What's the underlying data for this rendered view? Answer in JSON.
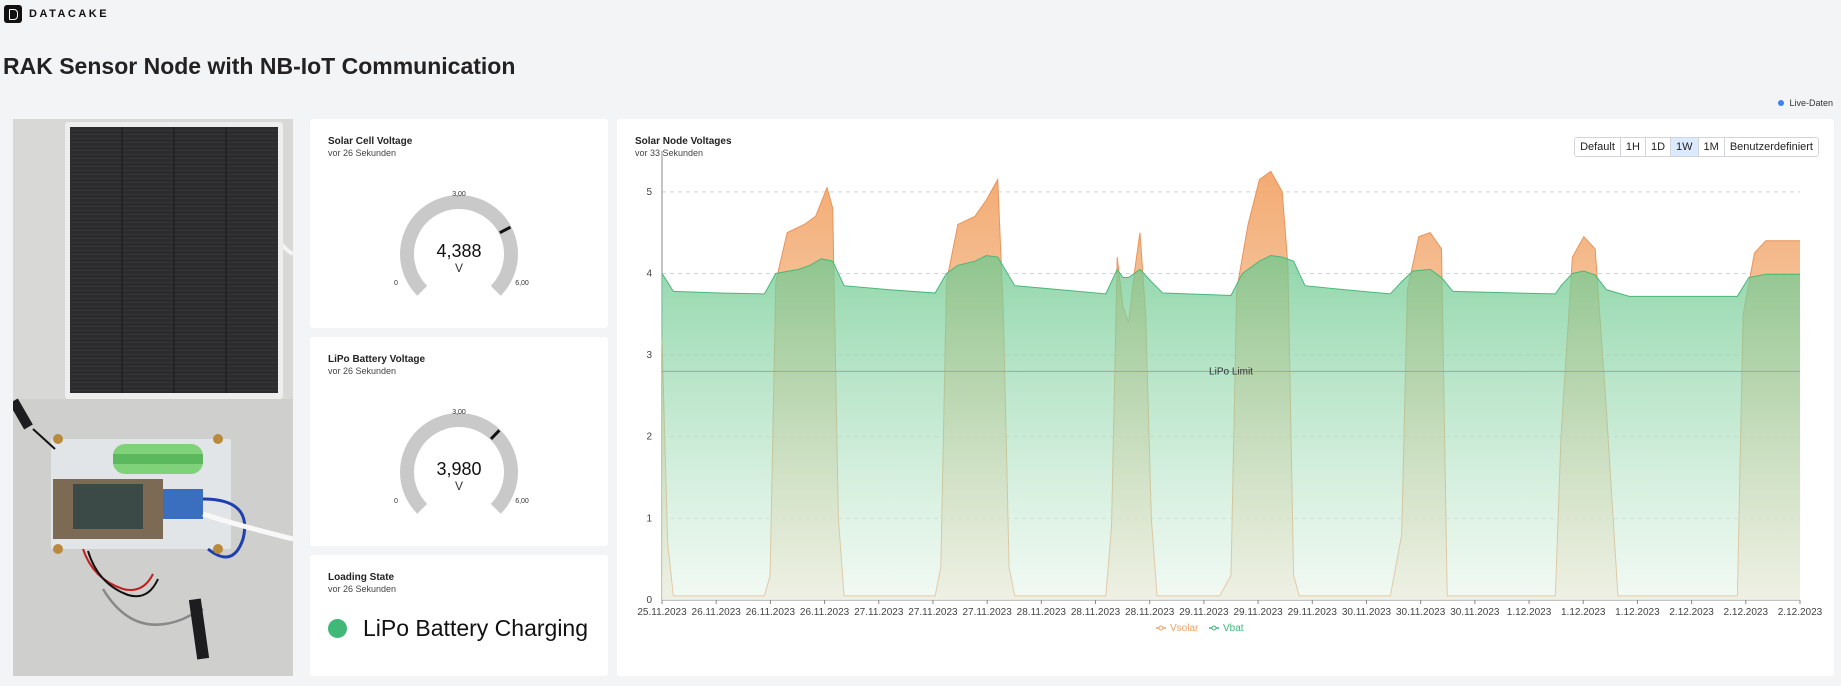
{
  "brand": {
    "name": "DATACAKE"
  },
  "page": {
    "title": "RAK Sensor Node with NB-IoT Communication"
  },
  "live": {
    "label": "Live-Daten",
    "color": "#3b82f6"
  },
  "widgets": {
    "solar_cell": {
      "title": "Solar Cell Voltage",
      "updated": "vor 26 Sekunden",
      "value": "4,388",
      "value_num": 4.388,
      "unit": "V",
      "min": "0",
      "mid": "3,00",
      "max": "6,00",
      "min_num": 0,
      "max_num": 6
    },
    "lipo_battery": {
      "title": "LiPo Battery Voltage",
      "updated": "vor 26 Sekunden",
      "value": "3,980",
      "value_num": 3.98,
      "unit": "V",
      "min": "0",
      "mid": "3,00",
      "max": "6,00",
      "min_num": 0,
      "max_num": 6
    },
    "loading_state": {
      "title": "Loading State",
      "updated": "vor 26 Sekunden",
      "status": "LiPo Battery Charging",
      "status_color": "#3fb878"
    }
  },
  "chart_card": {
    "title": "Solar Node Voltages",
    "updated": "vor 33 Sekunden",
    "ranges": [
      "Default",
      "1H",
      "1D",
      "1W",
      "1M",
      "Benutzerdefiniert"
    ],
    "active_range": "1W"
  },
  "chart_data": {
    "type": "area",
    "title": "Solar Node Voltages",
    "x": [
      "25.11.2023",
      "26.11.2023",
      "26.11.2023",
      "26.11.2023",
      "27.11.2023",
      "27.11.2023",
      "27.11.2023",
      "28.11.2023",
      "28.11.2023",
      "28.11.2023",
      "29.11.2023",
      "29.11.2023",
      "29.11.2023",
      "30.11.2023",
      "30.11.2023",
      "30.11.2023",
      "1.12.2023",
      "1.12.2023",
      "1.12.2023",
      "2.12.2023",
      "2.12.2023",
      "2.12.2023"
    ],
    "yticks": [
      "0",
      "1",
      "2",
      "3",
      "4",
      "5"
    ],
    "ylim": [
      0,
      5.5
    ],
    "reference_line": {
      "label": "LiPo Limit",
      "value": 2.8
    },
    "legend_position": "bottom-center",
    "grid": true,
    "series": [
      {
        "name": "Vsolar",
        "color": "#f0a268",
        "values": [
          [
            0,
            3.2
          ],
          [
            0.05,
            0.7
          ],
          [
            0.1,
            0.05
          ],
          [
            0.5,
            0.05
          ],
          [
            0.9,
            0.05
          ],
          [
            0.95,
            0.3
          ],
          [
            1.0,
            3.9
          ],
          [
            1.1,
            4.5
          ],
          [
            1.25,
            4.6
          ],
          [
            1.35,
            4.7
          ],
          [
            1.45,
            5.05
          ],
          [
            1.5,
            4.8
          ],
          [
            1.55,
            1.0
          ],
          [
            1.6,
            0.05
          ],
          [
            2.0,
            0.05
          ],
          [
            2.4,
            0.05
          ],
          [
            2.45,
            0.4
          ],
          [
            2.5,
            3.9
          ],
          [
            2.6,
            4.6
          ],
          [
            2.75,
            4.7
          ],
          [
            2.85,
            4.9
          ],
          [
            2.95,
            5.15
          ],
          [
            3.0,
            3.5
          ],
          [
            3.05,
            0.4
          ],
          [
            3.1,
            0.05
          ],
          [
            3.5,
            0.05
          ],
          [
            3.9,
            0.05
          ],
          [
            3.95,
            0.9
          ],
          [
            4.0,
            4.2
          ],
          [
            4.05,
            3.6
          ],
          [
            4.1,
            3.4
          ],
          [
            4.15,
            4.0
          ],
          [
            4.2,
            4.5
          ],
          [
            4.25,
            3.5
          ],
          [
            4.3,
            1.0
          ],
          [
            4.35,
            0.05
          ],
          [
            4.8,
            0.05
          ],
          [
            4.9,
            0.05
          ],
          [
            5.0,
            0.3
          ],
          [
            5.05,
            3.8
          ],
          [
            5.15,
            4.6
          ],
          [
            5.25,
            5.15
          ],
          [
            5.35,
            5.25
          ],
          [
            5.45,
            5.0
          ],
          [
            5.5,
            4.1
          ],
          [
            5.55,
            0.3
          ],
          [
            5.6,
            0.05
          ],
          [
            6.0,
            0.05
          ],
          [
            6.4,
            0.05
          ],
          [
            6.5,
            0.8
          ],
          [
            6.55,
            3.8
          ],
          [
            6.65,
            4.45
          ],
          [
            6.75,
            4.5
          ],
          [
            6.85,
            4.3
          ],
          [
            6.9,
            0.05
          ],
          [
            7.0,
            0.05
          ],
          [
            7.5,
            0.05
          ],
          [
            7.85,
            0.05
          ],
          [
            7.9,
            2.0
          ],
          [
            8.0,
            4.2
          ],
          [
            8.1,
            4.45
          ],
          [
            8.2,
            4.3
          ],
          [
            8.3,
            2.3
          ],
          [
            8.4,
            0.05
          ],
          [
            8.8,
            0.05
          ],
          [
            9.45,
            0.05
          ],
          [
            9.5,
            3.5
          ],
          [
            9.6,
            4.25
          ],
          [
            9.7,
            4.4
          ],
          [
            9.8,
            4.4
          ],
          [
            10.0,
            4.4
          ]
        ]
      },
      {
        "name": "Vbat",
        "color": "#3fb878",
        "values": [
          [
            0,
            4.0
          ],
          [
            0.1,
            3.78
          ],
          [
            0.5,
            3.76
          ],
          [
            0.9,
            3.75
          ],
          [
            1.0,
            4.0
          ],
          [
            1.2,
            4.05
          ],
          [
            1.3,
            4.1
          ],
          [
            1.4,
            4.18
          ],
          [
            1.5,
            4.15
          ],
          [
            1.6,
            3.85
          ],
          [
            2.0,
            3.8
          ],
          [
            2.4,
            3.76
          ],
          [
            2.5,
            4.0
          ],
          [
            2.6,
            4.1
          ],
          [
            2.75,
            4.15
          ],
          [
            2.85,
            4.22
          ],
          [
            2.95,
            4.2
          ],
          [
            3.1,
            3.85
          ],
          [
            3.5,
            3.8
          ],
          [
            3.9,
            3.75
          ],
          [
            4.0,
            4.05
          ],
          [
            4.05,
            3.95
          ],
          [
            4.1,
            3.95
          ],
          [
            4.2,
            4.05
          ],
          [
            4.3,
            3.9
          ],
          [
            4.4,
            3.76
          ],
          [
            4.8,
            3.74
          ],
          [
            5.0,
            3.73
          ],
          [
            5.1,
            4.0
          ],
          [
            5.25,
            4.15
          ],
          [
            5.35,
            4.22
          ],
          [
            5.45,
            4.2
          ],
          [
            5.55,
            4.15
          ],
          [
            5.65,
            3.85
          ],
          [
            6.0,
            3.8
          ],
          [
            6.4,
            3.75
          ],
          [
            6.5,
            3.9
          ],
          [
            6.6,
            4.03
          ],
          [
            6.75,
            4.05
          ],
          [
            6.85,
            3.95
          ],
          [
            6.95,
            3.78
          ],
          [
            7.5,
            3.76
          ],
          [
            7.85,
            3.75
          ],
          [
            7.9,
            3.85
          ],
          [
            8.0,
            4.0
          ],
          [
            8.1,
            4.03
          ],
          [
            8.2,
            3.98
          ],
          [
            8.3,
            3.8
          ],
          [
            8.5,
            3.72
          ],
          [
            9.0,
            3.72
          ],
          [
            9.45,
            3.72
          ],
          [
            9.55,
            3.95
          ],
          [
            9.7,
            3.99
          ],
          [
            9.85,
            3.99
          ],
          [
            10.0,
            3.99
          ]
        ]
      }
    ]
  }
}
